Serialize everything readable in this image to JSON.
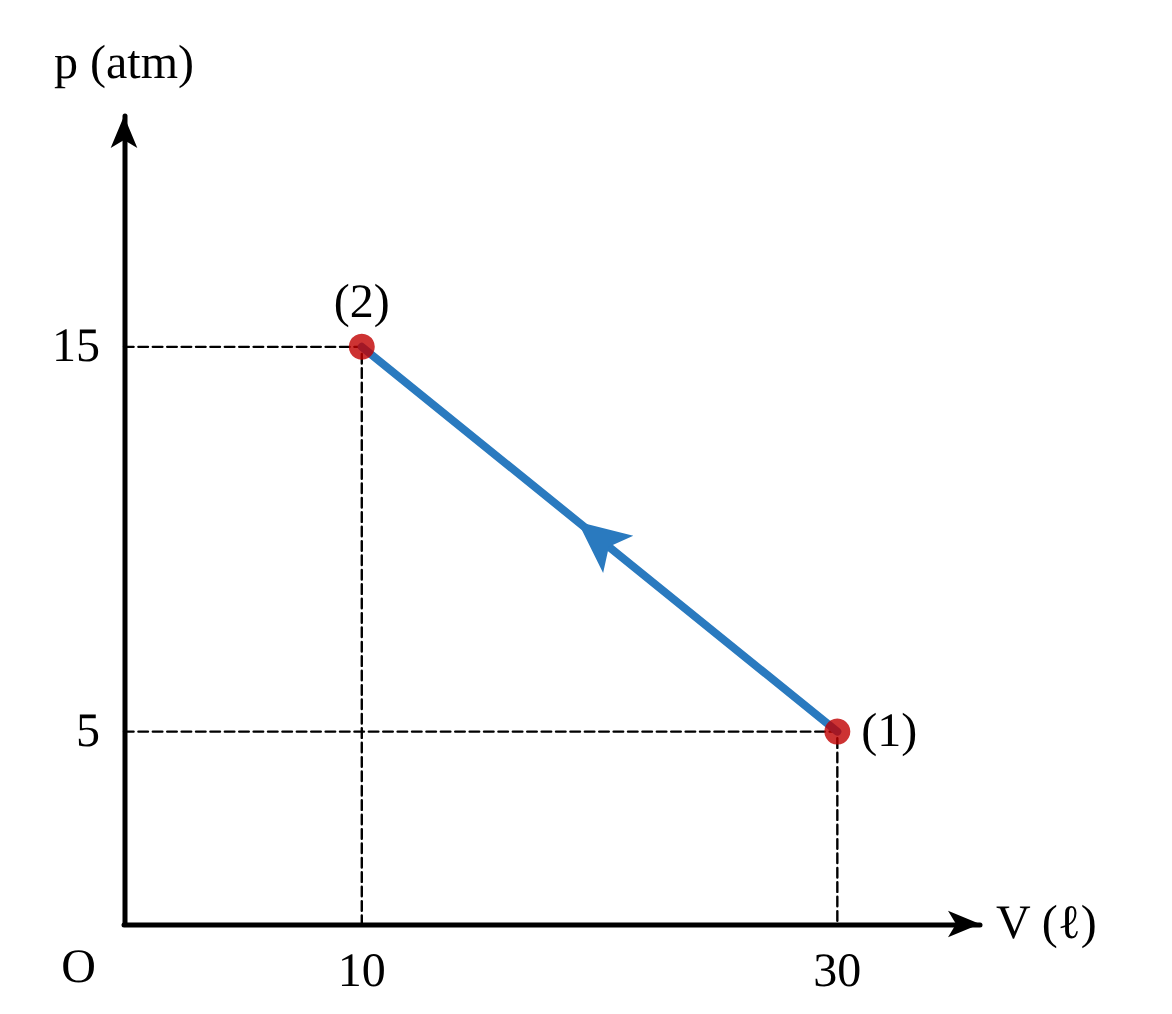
{
  "chart_data": {
    "type": "line",
    "xlabel": "V (ℓ)",
    "ylabel": "p (atm)",
    "xlim": [
      0,
      36
    ],
    "ylim": [
      0,
      21
    ],
    "xticks": [
      10,
      30
    ],
    "yticks": [
      5,
      15
    ],
    "grid": false,
    "series": [
      {
        "color": "#000000",
        "line_style": "dashed",
        "marker": "none",
        "x": [
          0,
          10,
          10
        ],
        "values": [
          15,
          15,
          0
        ]
      },
      {
        "color": "#000000",
        "line_style": "dashed",
        "marker": "none",
        "x": [
          0,
          30,
          30
        ],
        "values": [
          5,
          5,
          0
        ]
      },
      {
        "color": "#2a7abf",
        "line_style": "solid",
        "marker": "none",
        "x": [
          30,
          10
        ],
        "values": [
          5,
          15
        ]
      },
      {
        "type": "scatter",
        "color": "#c00000",
        "marker": "circle",
        "x": [
          30,
          10
        ],
        "values": [
          5,
          15
        ]
      }
    ],
    "annotations": [
      "O",
      {
        "text": "(1)",
        "x": 30,
        "y": 5
      },
      {
        "text": "(2)",
        "x": 10,
        "y": 15
      }
    ]
  }
}
